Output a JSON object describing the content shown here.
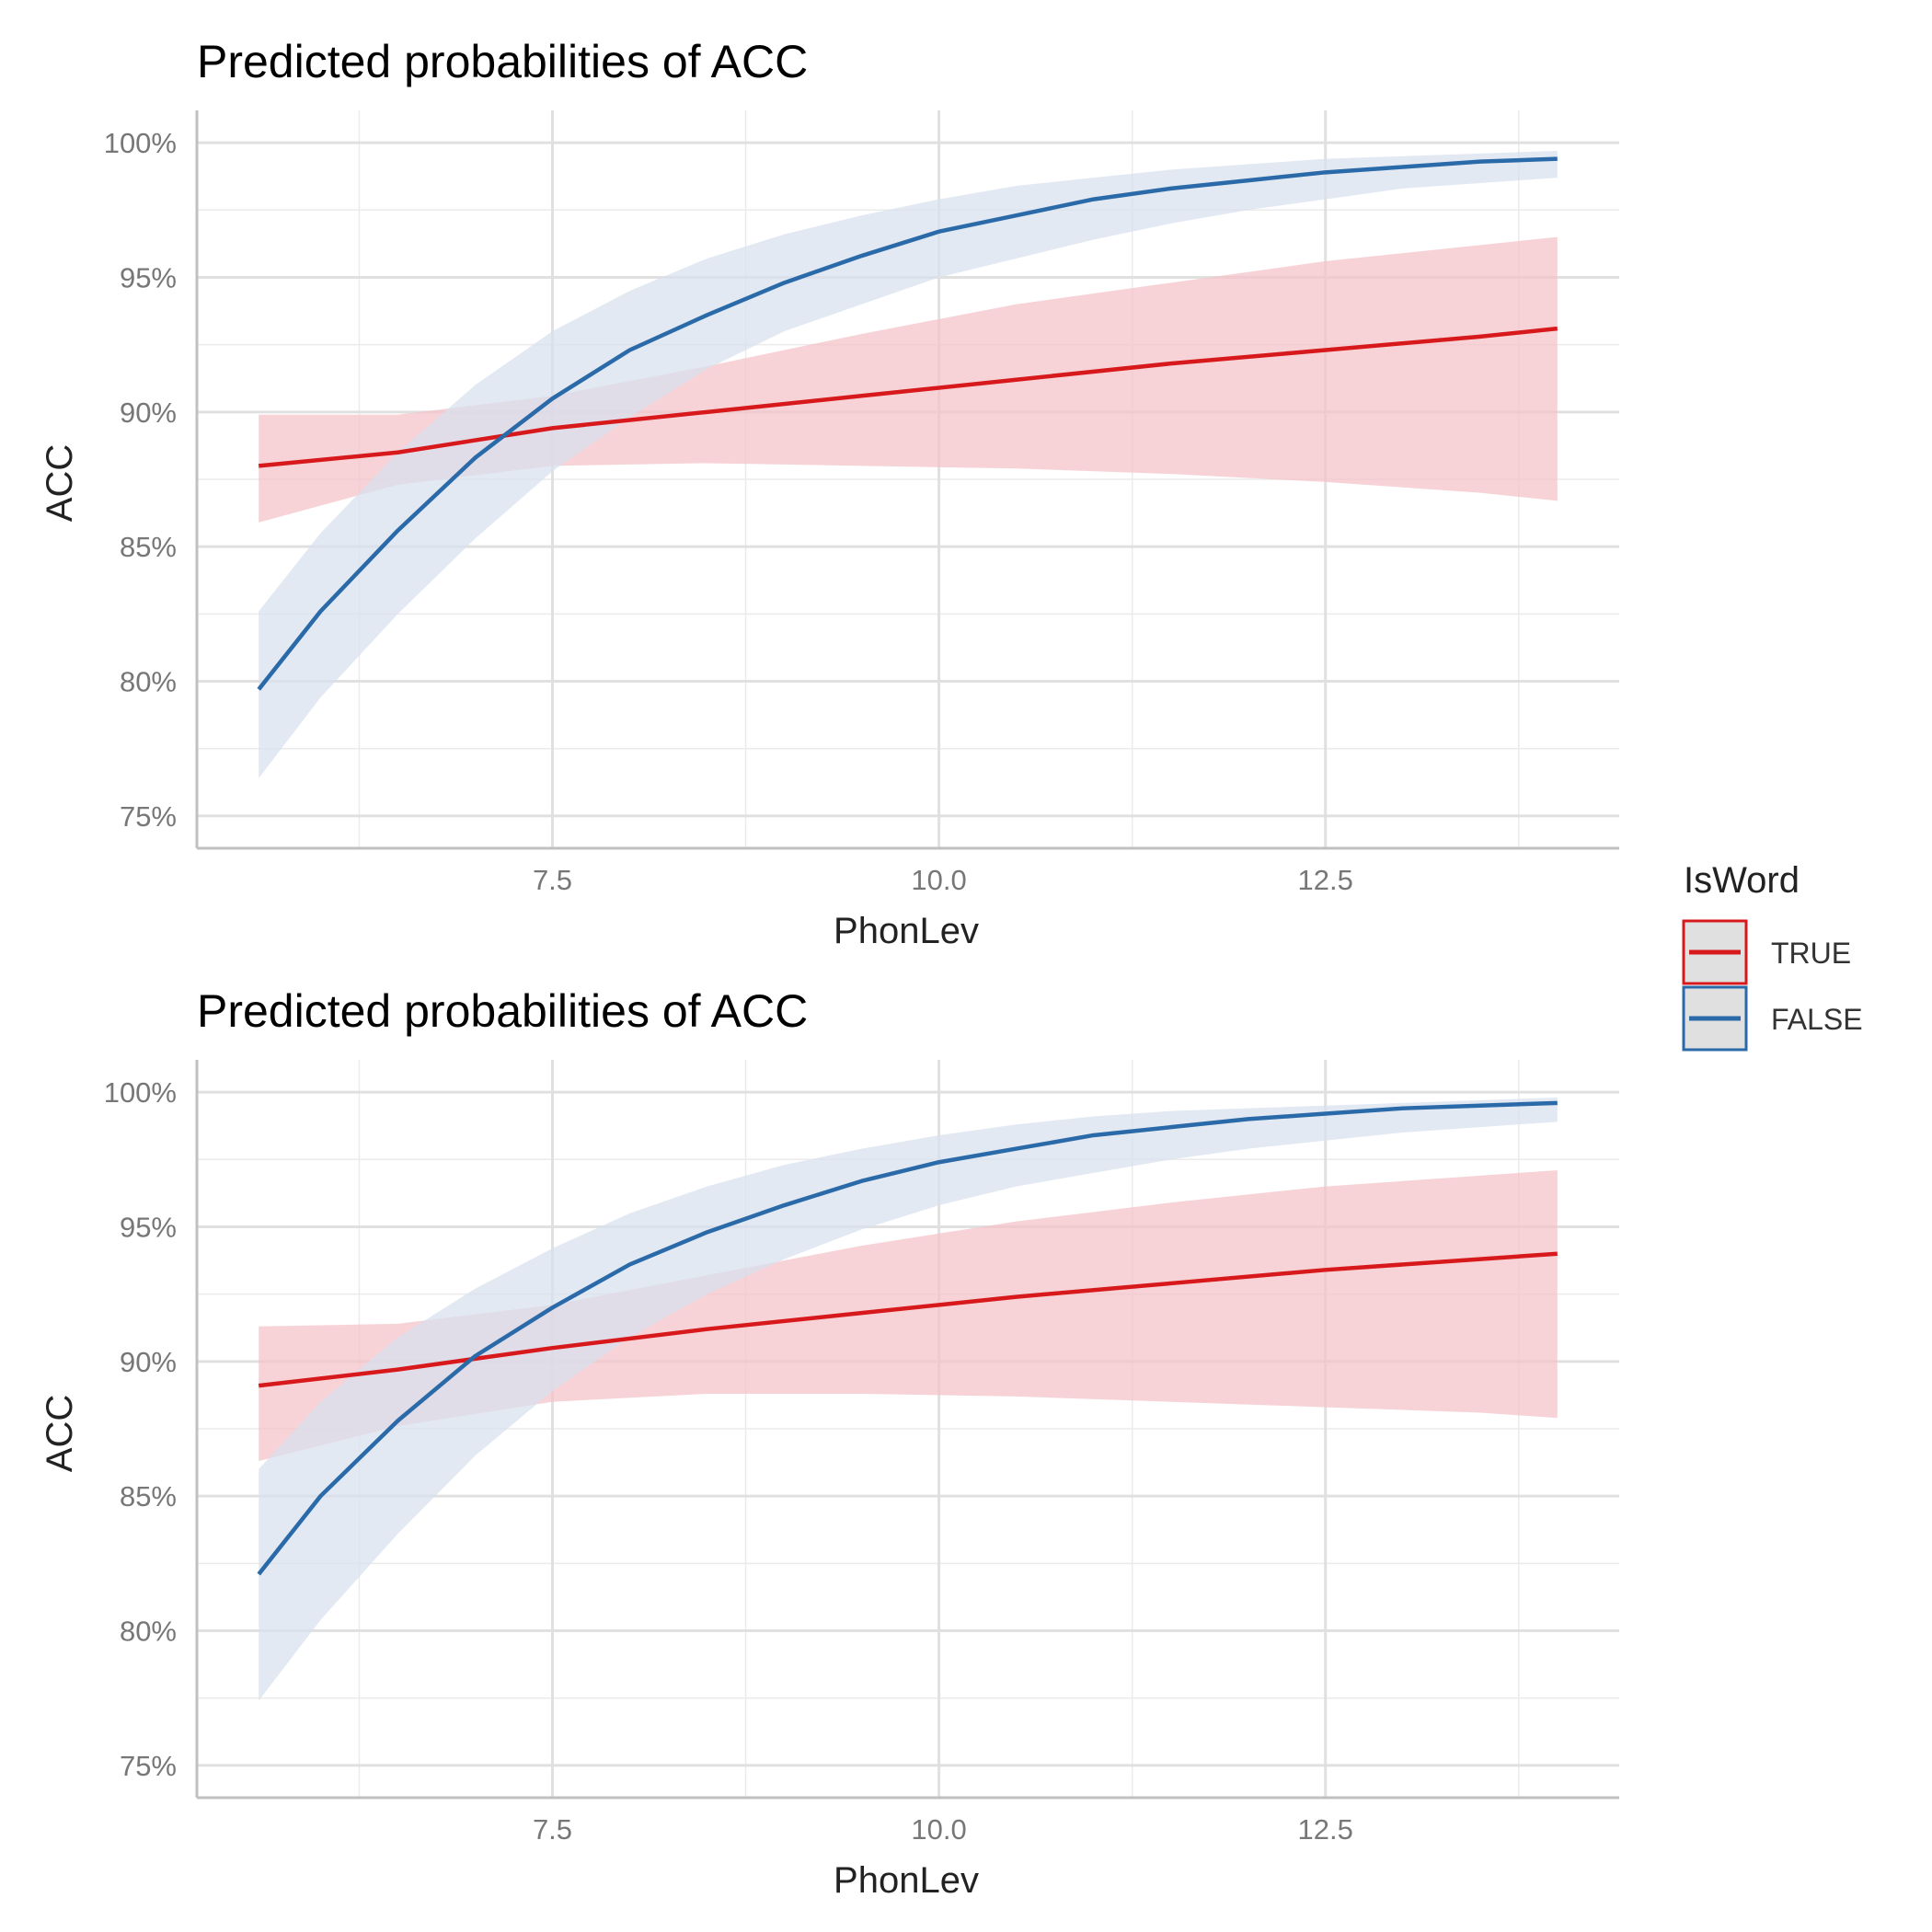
{
  "chart_data": [
    {
      "type": "line",
      "title": "Predicted probabilities of ACC",
      "xlabel": "PhonLev",
      "ylabel": "ACC",
      "xlim": [
        5.2,
        14.4
      ],
      "ylim": [
        73.8,
        101.2
      ],
      "xticks": [
        7.5,
        10.0,
        12.5
      ],
      "xtick_labels": [
        "7.5",
        "10.0",
        "12.5"
      ],
      "yticks": [
        75,
        80,
        85,
        90,
        95,
        100
      ],
      "ytick_labels": [
        "75%",
        "80%",
        "85%",
        "90%",
        "95%",
        "100%"
      ],
      "grid": true,
      "series": [
        {
          "name": "TRUE",
          "color": "#d7191c",
          "band_color": "#f4c2c7",
          "x": [
            5.6,
            6.5,
            7.5,
            8.5,
            9.5,
            10.5,
            11.5,
            12.5,
            13.5,
            14.0
          ],
          "y": [
            88.0,
            88.5,
            89.4,
            90.0,
            90.6,
            91.2,
            91.8,
            92.3,
            92.8,
            93.1
          ],
          "lower": [
            85.9,
            87.3,
            88.0,
            88.1,
            88.0,
            87.9,
            87.7,
            87.4,
            87.0,
            86.7
          ],
          "upper": [
            89.9,
            89.9,
            90.6,
            91.7,
            92.9,
            94.0,
            94.8,
            95.6,
            96.2,
            96.5
          ]
        },
        {
          "name": "FALSE",
          "color": "#2b6aa8",
          "band_color": "#d7e1ee",
          "x": [
            5.6,
            6.0,
            6.5,
            7.0,
            7.5,
            8.0,
            8.5,
            9.0,
            9.5,
            10.0,
            10.5,
            11.0,
            11.5,
            12.0,
            12.5,
            13.0,
            13.5,
            14.0
          ],
          "y": [
            79.7,
            82.6,
            85.6,
            88.3,
            90.5,
            92.3,
            93.6,
            94.8,
            95.8,
            96.7,
            97.3,
            97.9,
            98.3,
            98.6,
            98.9,
            99.1,
            99.3,
            99.4
          ],
          "lower": [
            76.4,
            79.4,
            82.5,
            85.3,
            87.8,
            89.8,
            91.6,
            93.0,
            94.0,
            95.0,
            95.7,
            96.4,
            97.0,
            97.5,
            97.9,
            98.3,
            98.5,
            98.7
          ],
          "upper": [
            82.6,
            85.5,
            88.5,
            91.0,
            93.0,
            94.5,
            95.7,
            96.6,
            97.3,
            97.9,
            98.4,
            98.7,
            99.0,
            99.2,
            99.4,
            99.5,
            99.6,
            99.7
          ]
        }
      ]
    },
    {
      "type": "line",
      "title": "Predicted probabilities of ACC",
      "xlabel": "PhonLev",
      "ylabel": "ACC",
      "xlim": [
        5.2,
        14.4
      ],
      "ylim": [
        73.8,
        101.2
      ],
      "xticks": [
        7.5,
        10.0,
        12.5
      ],
      "xtick_labels": [
        "7.5",
        "10.0",
        "12.5"
      ],
      "yticks": [
        75,
        80,
        85,
        90,
        95,
        100
      ],
      "ytick_labels": [
        "75%",
        "80%",
        "85%",
        "90%",
        "95%",
        "100%"
      ],
      "grid": true,
      "series": [
        {
          "name": "TRUE",
          "color": "#d7191c",
          "band_color": "#f4c2c7",
          "x": [
            5.6,
            6.5,
            7.5,
            8.5,
            9.5,
            10.5,
            11.5,
            12.5,
            13.5,
            14.0
          ],
          "y": [
            89.1,
            89.7,
            90.5,
            91.2,
            91.8,
            92.4,
            92.9,
            93.4,
            93.8,
            94.0
          ],
          "lower": [
            86.3,
            87.6,
            88.5,
            88.8,
            88.8,
            88.7,
            88.5,
            88.3,
            88.1,
            87.9
          ],
          "upper": [
            91.3,
            91.4,
            92.1,
            93.2,
            94.3,
            95.2,
            95.9,
            96.5,
            96.9,
            97.1
          ]
        },
        {
          "name": "FALSE",
          "color": "#2b6aa8",
          "band_color": "#d7e1ee",
          "x": [
            5.6,
            6.0,
            6.5,
            7.0,
            7.5,
            8.0,
            8.5,
            9.0,
            9.5,
            10.0,
            10.5,
            11.0,
            11.5,
            12.0,
            12.5,
            13.0,
            13.5,
            14.0
          ],
          "y": [
            82.1,
            85.0,
            87.8,
            90.2,
            92.0,
            93.6,
            94.8,
            95.8,
            96.7,
            97.4,
            97.9,
            98.4,
            98.7,
            99.0,
            99.2,
            99.4,
            99.5,
            99.6
          ],
          "lower": [
            77.4,
            80.4,
            83.6,
            86.5,
            88.9,
            90.9,
            92.5,
            93.8,
            94.9,
            95.8,
            96.5,
            97.0,
            97.5,
            97.9,
            98.2,
            98.5,
            98.7,
            98.9
          ],
          "upper": [
            86.0,
            88.5,
            90.9,
            92.7,
            94.2,
            95.5,
            96.5,
            97.3,
            97.9,
            98.4,
            98.8,
            99.1,
            99.3,
            99.4,
            99.5,
            99.6,
            99.7,
            99.8
          ]
        }
      ]
    }
  ],
  "legend": {
    "title": "IsWord",
    "items": [
      {
        "label": "TRUE",
        "color": "#d7191c"
      },
      {
        "label": "FALSE",
        "color": "#2b6aa8"
      }
    ]
  }
}
